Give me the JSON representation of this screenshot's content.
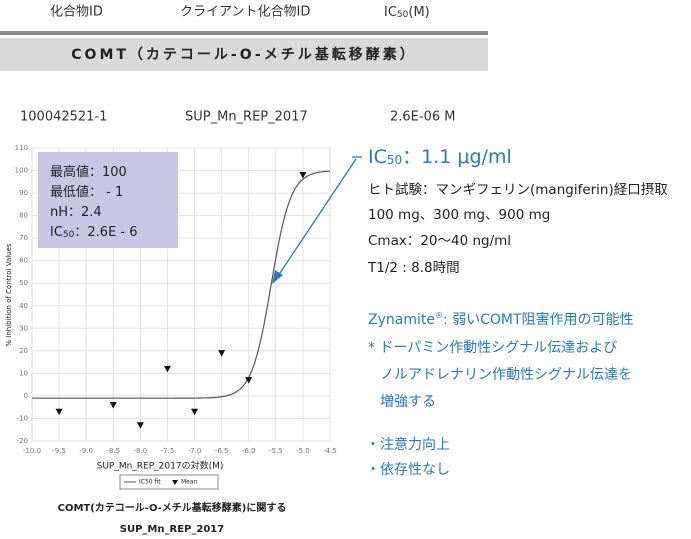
{
  "header": {
    "columns": [
      "化合物ID",
      "クライアント化合物ID",
      [
        "IC",
        "50",
        "(M)"
      ]
    ]
  },
  "banner": "COMT（カテコール-O-メチル基転移酵素）",
  "row": [
    "100042521-1",
    "SUP_Mn_REP_2017",
    "2.6E-06 M"
  ],
  "chart_data": {
    "type": "dose_response",
    "x_label": "SUP_Mn_REP_2017の対数(M)",
    "y_label": "% Inhibition of Control Values",
    "caption": [
      "COMT(カテコール-O-メチル基転移酵素)に関する",
      "SUP_Mn_REP_2017"
    ],
    "xlim": [
      -10,
      -4.5
    ],
    "xticks": [
      {
        "value": -10,
        "label": "-10.0"
      },
      -9.5,
      {
        "value": -9,
        "label": "-9.0"
      },
      -8.5,
      {
        "value": -8,
        "label": "-8.0"
      },
      -7.5,
      {
        "value": -7,
        "label": "-7.0"
      },
      -6.5,
      {
        "value": -6,
        "label": "-6.0"
      },
      -5.5,
      {
        "value": -5,
        "label": "-5.0"
      },
      -4.5
    ],
    "ylim": [
      -20,
      110
    ],
    "yticks": [
      110,
      100,
      90,
      80,
      70,
      60,
      50,
      40,
      30,
      20,
      10,
      0,
      -10,
      -20
    ],
    "grid": true,
    "x": [
      -9.5,
      -8.5,
      -8.0,
      -7.5,
      -7.0,
      -6.5,
      -6.0,
      -5.0
    ],
    "series": [
      {
        "name": "IC50 fit",
        "color": "#555555",
        "params": [
          {
            "name": "最高値：",
            "value": 100,
            "value_label": "100"
          },
          {
            "name": "最低値：",
            "value": -1,
            "value_label": " - 1"
          },
          {
            "name": "nH：",
            "value": 2.4,
            "value_label": "2.4"
          },
          {
            "name": [
              "IC",
              "50",
              "："
            ],
            "value": 2.6e-06,
            "value_label": "2.6E - 6"
          }
        ]
      },
      {
        "name": "Mean",
        "color": "#111111",
        "values": [
          -7,
          -4,
          -13,
          12,
          -7,
          19,
          7,
          98
        ]
      }
    ]
  },
  "notes": {
    "heading": [
      "IC",
      "50",
      "：1.1 μg/ml"
    ],
    "study": [
      "ヒト試験：マンギフェリン(mangiferin)経口摂取",
      "100 mg、300 mg、900 mg",
      "Cmax：20〜40 ng/ml",
      "T1/2 : 8.8時間"
    ],
    "zynamite": [
      "Zynamite",
      "®",
      ": 弱いCOMT阻害作用の可能性"
    ],
    "effects": [
      "* ドーパミン作動性シグナル伝達および",
      "ノルアドレナリン作動性シグナル伝達を",
      "増強する"
    ],
    "bullets": [
      "・注意力向上",
      "・依存性なし"
    ]
  }
}
